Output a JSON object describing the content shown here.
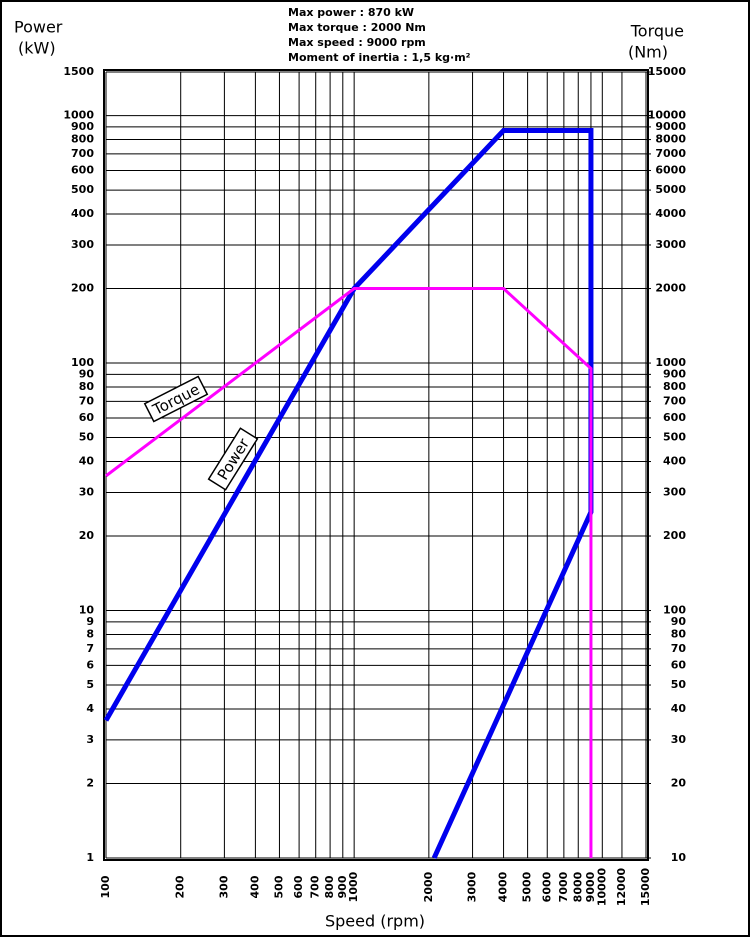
{
  "chart_data": {
    "type": "line",
    "title_lines": [
      "Max power : 870 kW",
      "Max torque : 2000 Nm",
      "Max speed : 9000 rpm",
      "Moment of inertia : 1,5 kg·m²"
    ],
    "y_label_lines": [
      "Power",
      "(kW)"
    ],
    "y2_label_lines": [
      "Torque",
      "(Nm)"
    ],
    "x_label": "Speed (rpm)",
    "xscale": "log",
    "yscale": "log",
    "grid": true,
    "xlim": [
      100,
      15000
    ],
    "xticks": [
      100,
      200,
      300,
      400,
      500,
      600,
      700,
      800,
      900,
      1000,
      2000,
      3000,
      4000,
      5000,
      6000,
      7000,
      8000,
      9000,
      10000,
      12000,
      15000
    ],
    "ylim": [
      1,
      1500
    ],
    "yticks": [
      1,
      2,
      3,
      4,
      5,
      6,
      7,
      8,
      9,
      10,
      20,
      30,
      40,
      50,
      60,
      70,
      80,
      90,
      100,
      200,
      300,
      400,
      500,
      600,
      700,
      800,
      900,
      1000,
      1500
    ],
    "y2lim": [
      10,
      15000
    ],
    "y2ticks": [
      10,
      20,
      30,
      40,
      50,
      60,
      70,
      80,
      90,
      100,
      200,
      300,
      400,
      500,
      600,
      700,
      800,
      900,
      1000,
      2000,
      3000,
      4000,
      5000,
      6000,
      7000,
      8000,
      9000,
      10000,
      15000
    ],
    "series": [
      {
        "name": "Power",
        "color": "#0000ee",
        "axis": "y",
        "x": [
          100,
          1000,
          4000,
          9000,
          9000,
          2100
        ],
        "values": [
          3.6,
          200,
          870,
          870,
          25,
          1
        ]
      },
      {
        "name": "Torque",
        "color": "#ff00ff",
        "axis": "y2",
        "x": [
          100,
          1000,
          4000,
          9000,
          9000
        ],
        "values": [
          350,
          2000,
          2000,
          950,
          10
        ]
      }
    ]
  }
}
